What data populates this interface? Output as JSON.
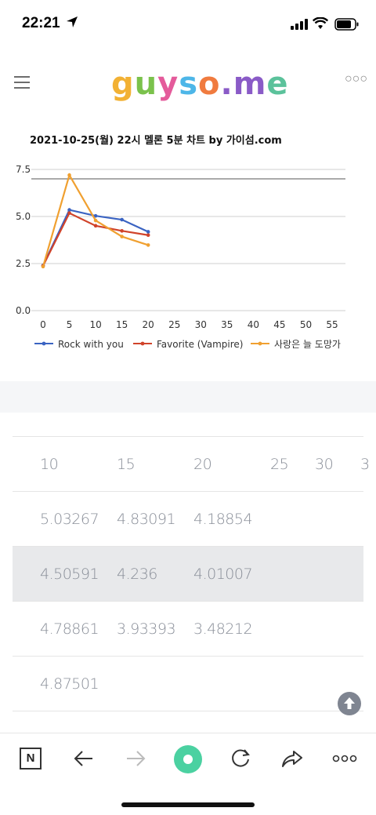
{
  "status_bar": {
    "time": "22:21"
  },
  "header": {
    "logo_letters": [
      {
        "ch": "g",
        "color": "#f2b134"
      },
      {
        "ch": "u",
        "color": "#7bc24c"
      },
      {
        "ch": "y",
        "color": "#e45b9b"
      },
      {
        "ch": "s",
        "color": "#4db6e8"
      },
      {
        "ch": "o",
        "color": "#f07b3f"
      },
      {
        "ch": ".",
        "color": "#8a5bc7"
      },
      {
        "ch": "m",
        "color": "#8a5bc7"
      },
      {
        "ch": "e",
        "color": "#5bc29b"
      }
    ],
    "more_label": "○○○"
  },
  "chart_title": "2021-10-25(월) 22시 멜론 5분 차트 by 가이섬.com",
  "chart_data": {
    "type": "line",
    "x": [
      0,
      5,
      10,
      15,
      20
    ],
    "x_ticks": [
      "0",
      "5",
      "10",
      "15",
      "20",
      "25",
      "30",
      "35",
      "40",
      "45",
      "50",
      "55"
    ],
    "y_ticks": [
      "0.0",
      "2.5",
      "5.0",
      "7.5"
    ],
    "ylim": [
      0,
      7.5
    ],
    "xlim": [
      0,
      57
    ],
    "reference_line": 7.0,
    "grid": true,
    "legend_position": "bottom",
    "series": [
      {
        "name": "Rock with you",
        "color": "#3a63c2",
        "values": [
          2.4,
          5.35,
          5.03267,
          4.83091,
          4.18854
        ]
      },
      {
        "name": "Favorite (Vampire)",
        "color": "#d0432a",
        "values": [
          2.38,
          5.18,
          4.50591,
          4.236,
          4.01007
        ]
      },
      {
        "name": "사랑은 늘 도망가",
        "color": "#f0a030",
        "values": [
          2.34,
          7.2,
          4.78861,
          3.93393,
          3.48212
        ]
      }
    ]
  },
  "table": {
    "header": [
      "10",
      "15",
      "20",
      "25",
      "30",
      "3"
    ],
    "rows": [
      [
        "5.03267",
        "4.83091",
        "4.18854"
      ],
      [
        "4.50591",
        "4.236",
        "4.01007"
      ],
      [
        "4.78861",
        "3.93393",
        "3.48212"
      ],
      [
        "4.87501",
        "",
        ""
      ]
    ]
  },
  "bottom_nav": {
    "n_label": "N",
    "more_label": "○○○"
  }
}
